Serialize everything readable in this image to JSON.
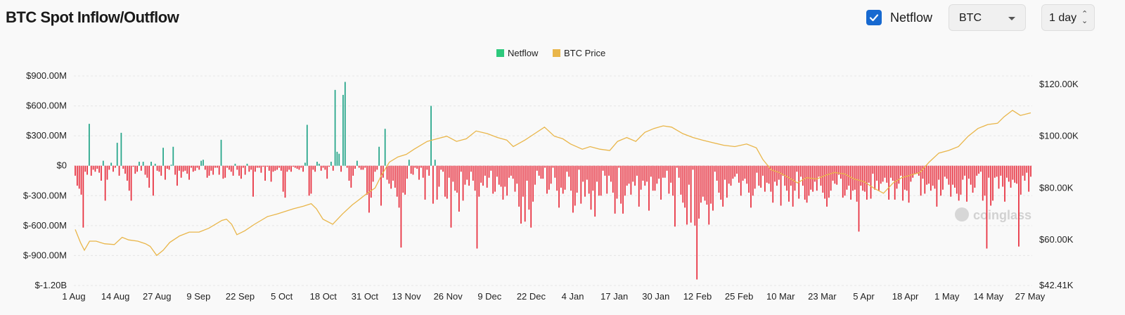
{
  "header": {
    "title": "BTC Spot Inflow/Outflow",
    "netflow_checkbox_label": "Netflow",
    "coin_select_value": "BTC",
    "interval_value": "1 day"
  },
  "watermark": "coinglass",
  "colors": {
    "positive": "#26a68a",
    "negative": "#e8303f",
    "price": "#e9b64a",
    "checkbox": "#1769d0",
    "legend_netflow": "#2dc97c",
    "legend_price": "#e9b64a"
  },
  "chart_data": {
    "type": "bar",
    "legend": [
      "Netflow",
      "BTC Price"
    ],
    "x_tick_labels": [
      "1 Aug",
      "14 Aug",
      "27 Aug",
      "9 Sep",
      "22 Sep",
      "5 Oct",
      "18 Oct",
      "31 Oct",
      "13 Nov",
      "26 Nov",
      "9 Dec",
      "22 Dec",
      "4 Jan",
      "17 Jan",
      "30 Jan",
      "12 Feb",
      "25 Feb",
      "10 Mar",
      "23 Mar",
      "5 Apr",
      "18 Apr",
      "1 May",
      "14 May",
      "27 May"
    ],
    "y_left_tick_labels": [
      "$900.00M",
      "$600.00M",
      "$300.00M",
      "$0",
      "$-300.00M",
      "$-600.00M",
      "$-900.00M",
      "$-1.20B"
    ],
    "y_left_ticks": [
      900,
      600,
      300,
      0,
      -300,
      -600,
      -900,
      -1200
    ],
    "y_left_range": [
      -1200,
      900
    ],
    "y_left_unit": "$M",
    "y_right_tick_labels": [
      "$120.00K",
      "$100.00K",
      "$80.00K",
      "$60.00K",
      "$42.41K"
    ],
    "y_right_ticks": [
      120000,
      100000,
      80000,
      60000,
      42410
    ],
    "y_right_range": [
      42410,
      120000
    ],
    "x_start": "2024-08-01",
    "x_end": "2025-05-27",
    "series": [
      {
        "name": "Netflow",
        "type": "bar",
        "values": [
          -100,
          -200,
          -230,
          -290,
          -620,
          -60,
          -90,
          420,
          -100,
          -40,
          -60,
          -30,
          -70,
          -150,
          50,
          -350,
          -140,
          -40,
          30,
          -60,
          -20,
          230,
          -100,
          330,
          -30,
          -80,
          -150,
          -250,
          -350,
          -10,
          -80,
          -60,
          40,
          -50,
          40,
          -90,
          -120,
          -220,
          40,
          -300,
          20,
          -50,
          -60,
          -100,
          180,
          -140,
          -30,
          -40,
          10,
          190,
          -90,
          -200,
          -50,
          -120,
          -60,
          -50,
          -80,
          -140,
          -20,
          -60,
          -50,
          -20,
          -40,
          50,
          60,
          -40,
          -120,
          -100,
          -50,
          -90,
          -20,
          -20,
          -90,
          260,
          -130,
          -120,
          -20,
          -40,
          -60,
          -100,
          20,
          -40,
          -100,
          -130,
          -20,
          -90,
          20,
          -60,
          -40,
          -310,
          -60,
          -20,
          -20,
          -70,
          -10,
          -150,
          -10,
          -50,
          -160,
          -60,
          -50,
          -40,
          -20,
          -50,
          -260,
          -320,
          -60,
          -40,
          -60,
          -10,
          -20,
          -30,
          -40,
          -20,
          -60,
          30,
          410,
          -300,
          -280,
          -40,
          -60,
          40,
          20,
          -50,
          -20,
          -40,
          -130,
          -10,
          40,
          -50,
          760,
          140,
          120,
          -60,
          710,
          840,
          -20,
          -150,
          -220,
          -100,
          -30,
          50,
          -20,
          -40,
          -40,
          -20,
          -290,
          -470,
          -320,
          -160,
          -60,
          -40,
          190,
          -400,
          -120,
          370,
          -140,
          -180,
          -230,
          -150,
          -220,
          -310,
          -420,
          -820,
          -270,
          -290,
          -130,
          60,
          -80,
          -90,
          -20,
          -30,
          -140,
          -20,
          -120,
          -340,
          -40,
          -100,
          600,
          -380,
          60,
          -340,
          -210,
          -40,
          -60,
          -310,
          -330,
          -120,
          -620,
          -160,
          -250,
          -270,
          -460,
          -60,
          -350,
          -190,
          -140,
          -200,
          -60,
          -150,
          -250,
          -830,
          -310,
          -170,
          -200,
          -100,
          -220,
          -120,
          -50,
          -280,
          -260,
          -110,
          -190,
          -210,
          -340,
          -210,
          -300,
          -120,
          -100,
          -130,
          -260,
          -180,
          -410,
          -580,
          -310,
          -560,
          -150,
          -440,
          -620,
          -360,
          -190,
          -50,
          -100,
          -130,
          -130,
          -20,
          -280,
          -240,
          -180,
          -20,
          -120,
          -250,
          -420,
          -220,
          -280,
          -240,
          -60,
          -110,
          -250,
          -470,
          -400,
          -270,
          -40,
          -380,
          -160,
          -310,
          -140,
          -280,
          -440,
          -250,
          -510,
          -160,
          -300,
          -300,
          -50,
          -100,
          -280,
          -100,
          -160,
          -270,
          -480,
          -330,
          -20,
          -380,
          -480,
          -300,
          -200,
          -180,
          -290,
          -160,
          -200,
          -100,
          -410,
          -240,
          -150,
          -200,
          -160,
          -450,
          -110,
          -250,
          -250,
          -180,
          -130,
          -340,
          -120,
          -120,
          -50,
          -280,
          -170,
          -300,
          -610,
          -20,
          -120,
          -290,
          -370,
          -420,
          -590,
          -190,
          -570,
          -40,
          -600,
          -1140,
          -530,
          -370,
          -310,
          -350,
          -390,
          -590,
          -380,
          -450,
          -60,
          -150,
          -270,
          -340,
          -410,
          -140,
          -320,
          -180,
          -200,
          -130,
          -110,
          -80,
          -170,
          -300,
          -150,
          -130,
          -180,
          -270,
          -420,
          -300,
          -230,
          -70,
          -200,
          -220,
          -100,
          -260,
          -170,
          -180,
          -260,
          -370,
          -160,
          -200,
          -140,
          -400,
          -100,
          -200,
          -250,
          -360,
          -200,
          -410,
          -250,
          -60,
          -330,
          -110,
          -200,
          -340,
          -370,
          -300,
          -240,
          -260,
          -160,
          -250,
          -110,
          -200,
          -270,
          -330,
          -410,
          -320,
          -250,
          -150,
          -180,
          -190,
          -90,
          -130,
          -320,
          -300,
          -240,
          -200,
          -340,
          -250,
          -240,
          -360,
          -660,
          -200,
          -250,
          -260,
          -340,
          -170,
          -330,
          -80,
          -240,
          -150,
          -250,
          -180,
          -160,
          -120,
          -170,
          -340,
          -120,
          -150,
          -340,
          -230,
          -180,
          -100,
          -350,
          -240,
          -250,
          -370,
          -160,
          -120,
          -80,
          -80,
          -100,
          -300,
          -130,
          -280,
          -190,
          -180,
          -250,
          -200,
          -230,
          -410,
          -140,
          -300,
          -240,
          -110,
          -130,
          -190,
          -310,
          -190,
          -220,
          -280,
          -350,
          -290,
          -140,
          -100,
          -360,
          -130,
          -190,
          -270,
          -220,
          -100,
          -80,
          -60,
          -350,
          -300,
          -830,
          -120,
          -400,
          -350,
          -120,
          -110,
          -230,
          -100,
          -210,
          -360,
          -120,
          -160,
          -220,
          -140,
          -170,
          -180,
          -810,
          -290,
          -100,
          -150,
          -70,
          -260,
          -110
        ]
      },
      {
        "name": "BTC Price",
        "type": "line",
        "values": []
      }
    ]
  }
}
